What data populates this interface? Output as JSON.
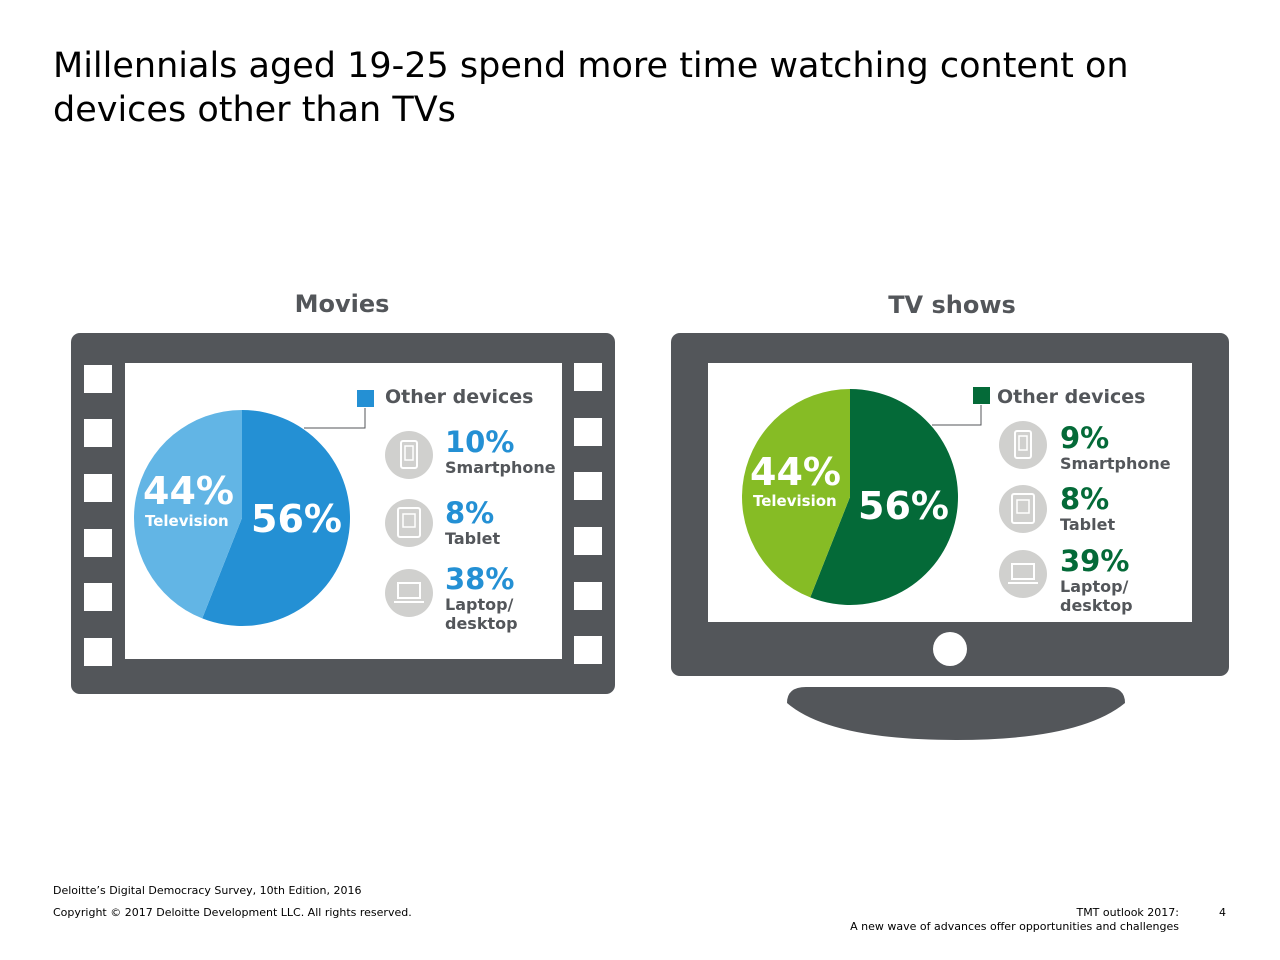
{
  "title": "Millennials aged 19-25 spend more time watching content on devices other than TVs",
  "colors": {
    "frame": "#53565a",
    "movies_main": "#2490d4",
    "movies_light": "#62b5e5",
    "tv_main": "#046a38",
    "tv_light": "#86bc25",
    "icon_circle": "#d0d0ce"
  },
  "chart_data": [
    {
      "type": "pie",
      "title": "Movies",
      "slices": [
        {
          "label": "Other devices",
          "value": 56
        },
        {
          "label": "Television",
          "value": 44
        }
      ],
      "slice_labels": {
        "main": "56%",
        "tv_pct": "44%",
        "tv_name": "Television"
      },
      "legend_label": "Other devices",
      "breakdown": [
        {
          "icon": "smartphone-icon",
          "pct": "10%",
          "label": "Smartphone"
        },
        {
          "icon": "tablet-icon",
          "pct": "8%",
          "label": "Tablet"
        },
        {
          "icon": "laptop-icon",
          "pct": "38%",
          "label": "Laptop/ desktop",
          "label_line1": "Laptop/",
          "label_line2": "desktop"
        }
      ]
    },
    {
      "type": "pie",
      "title": "TV shows",
      "slices": [
        {
          "label": "Other devices",
          "value": 56
        },
        {
          "label": "Television",
          "value": 44
        }
      ],
      "slice_labels": {
        "main": "56%",
        "tv_pct": "44%",
        "tv_name": "Television"
      },
      "legend_label": "Other devices",
      "breakdown": [
        {
          "icon": "smartphone-icon",
          "pct": "9%",
          "label": "Smartphone"
        },
        {
          "icon": "tablet-icon",
          "pct": "8%",
          "label": "Tablet"
        },
        {
          "icon": "laptop-icon",
          "pct": "39%",
          "label": "Laptop/ desktop",
          "label_line1": "Laptop/",
          "label_line2": "desktop"
        }
      ]
    }
  ],
  "footer": {
    "source": "Deloitte’s Digital Democracy Survey, 10th Edition, 2016",
    "copyright": "Copyright © 2017 Deloitte Development LLC. All rights reserved.",
    "doc_title_1": "TMT outlook 2017:",
    "doc_title_2": "A new wave of advances offer opportunities and challenges",
    "page_number": "4"
  }
}
